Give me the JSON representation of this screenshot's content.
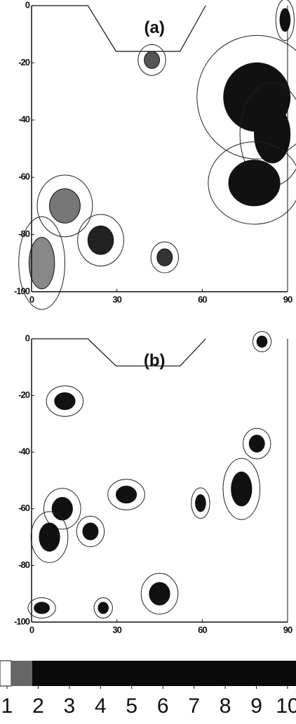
{
  "chart_data": [
    {
      "type": "contour",
      "title": "(a)",
      "xlim": [
        0,
        90
      ],
      "ylim": [
        -100,
        0
      ],
      "xticks": [
        0,
        30,
        60,
        90
      ],
      "yticks": [
        0,
        -20,
        -40,
        -60,
        -80,
        -100
      ]
    },
    {
      "type": "contour",
      "title": "(b)",
      "xlim": [
        0,
        90
      ],
      "ylim": [
        -100,
        0
      ],
      "xticks": [
        0,
        30,
        60,
        90
      ],
      "yticks": [
        0,
        -20,
        -40,
        -60,
        -80,
        -100
      ]
    }
  ],
  "colorbar": {
    "ticks": [
      1,
      2,
      3,
      4,
      5,
      6,
      7,
      8,
      9,
      10
    ]
  }
}
